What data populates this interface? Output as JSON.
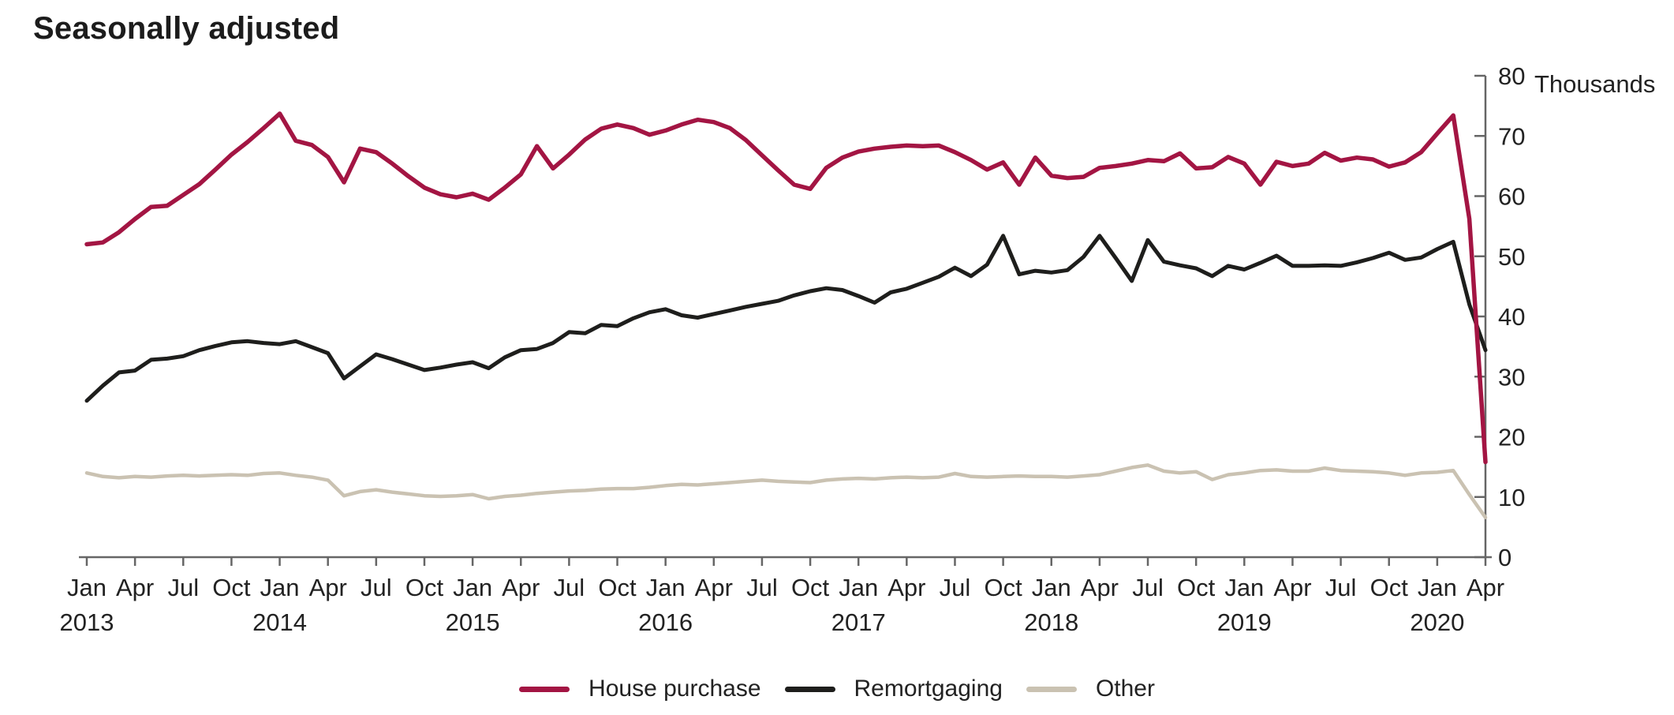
{
  "title": "Seasonally adjusted",
  "y_axis": {
    "unit_label": "Thousands",
    "min": 0,
    "max": 80,
    "step": 10,
    "tick_labels": [
      "0",
      "10",
      "20",
      "30",
      "40",
      "50",
      "60",
      "70",
      "80"
    ]
  },
  "x_axis": {
    "ticks": [
      {
        "month": "Jan",
        "year": "2013"
      },
      {
        "month": "Apr",
        "year": ""
      },
      {
        "month": "Jul",
        "year": ""
      },
      {
        "month": "Oct",
        "year": ""
      },
      {
        "month": "Jan",
        "year": "2014"
      },
      {
        "month": "Apr",
        "year": ""
      },
      {
        "month": "Jul",
        "year": ""
      },
      {
        "month": "Oct",
        "year": ""
      },
      {
        "month": "Jan",
        "year": "2015"
      },
      {
        "month": "Apr",
        "year": ""
      },
      {
        "month": "Jul",
        "year": ""
      },
      {
        "month": "Oct",
        "year": ""
      },
      {
        "month": "Jan",
        "year": "2016"
      },
      {
        "month": "Apr",
        "year": ""
      },
      {
        "month": "Jul",
        "year": ""
      },
      {
        "month": "Oct",
        "year": ""
      },
      {
        "month": "Jan",
        "year": "2017"
      },
      {
        "month": "Apr",
        "year": ""
      },
      {
        "month": "Jul",
        "year": ""
      },
      {
        "month": "Oct",
        "year": ""
      },
      {
        "month": "Jan",
        "year": "2018"
      },
      {
        "month": "Apr",
        "year": ""
      },
      {
        "month": "Jul",
        "year": ""
      },
      {
        "month": "Oct",
        "year": ""
      },
      {
        "month": "Jan",
        "year": "2019"
      },
      {
        "month": "Apr",
        "year": ""
      },
      {
        "month": "Jul",
        "year": ""
      },
      {
        "month": "Oct",
        "year": ""
      },
      {
        "month": "Jan",
        "year": "2020"
      },
      {
        "month": "Apr",
        "year": ""
      }
    ]
  },
  "legend": [
    {
      "label": "House purchase",
      "color": "#a31543"
    },
    {
      "label": "Remortgaging",
      "color": "#1e1e1c"
    },
    {
      "label": "Other",
      "color": "#cac2b2"
    }
  ],
  "colors": {
    "house_purchase": "#a31543",
    "remortgaging": "#1e1e1c",
    "other": "#cac2b2",
    "axis": "#666666",
    "text": "#222222"
  },
  "chart_data": {
    "type": "line",
    "title": "Seasonally adjusted",
    "x_start": "2013-01",
    "x_end": "2020-04",
    "x_frequency": "monthly",
    "xlabel": "",
    "ylabel": "Thousands",
    "ylim": [
      0,
      80
    ],
    "grid": false,
    "legend_position": "bottom-center",
    "y_axis_side": "right",
    "series": [
      {
        "name": "House purchase",
        "color": "#a31543",
        "values": [
          52.0,
          52.3,
          54.0,
          56.2,
          58.2,
          58.4,
          60.2,
          62.0,
          64.4,
          66.9,
          69.0,
          71.3,
          73.7,
          69.2,
          68.5,
          66.5,
          62.3,
          67.9,
          67.3,
          65.4,
          63.3,
          61.4,
          60.3,
          59.8,
          60.4,
          59.4,
          61.4,
          63.6,
          68.3,
          64.6,
          66.9,
          69.4,
          71.2,
          71.9,
          71.3,
          70.2,
          70.9,
          71.9,
          72.7,
          72.3,
          71.3,
          69.3,
          66.8,
          64.3,
          61.9,
          61.2,
          64.7,
          66.4,
          67.4,
          67.9,
          68.2,
          68.4,
          68.3,
          68.4,
          67.3,
          66.0,
          64.4,
          65.6,
          61.9,
          66.4,
          63.4,
          63.0,
          63.2,
          64.7,
          65.0,
          65.4,
          66.0,
          65.8,
          67.1,
          64.6,
          64.8,
          66.5,
          65.4,
          61.9,
          65.7,
          65.0,
          65.4,
          67.2,
          65.9,
          66.4,
          66.1,
          64.9,
          65.6,
          67.3,
          70.4,
          73.4,
          56.2,
          15.8
        ]
      },
      {
        "name": "Remortgaging",
        "color": "#1e1e1c",
        "values": [
          26.0,
          28.5,
          30.7,
          31.0,
          32.8,
          33.0,
          33.4,
          34.4,
          35.1,
          35.7,
          35.9,
          35.6,
          35.4,
          35.9,
          34.9,
          33.9,
          29.7,
          31.7,
          33.7,
          32.9,
          32.0,
          31.1,
          31.5,
          32.0,
          32.4,
          31.4,
          33.2,
          34.4,
          34.6,
          35.6,
          37.4,
          37.2,
          38.6,
          38.4,
          39.7,
          40.7,
          41.2,
          40.2,
          39.8,
          40.4,
          41.0,
          41.6,
          42.1,
          42.6,
          43.5,
          44.2,
          44.7,
          44.4,
          43.4,
          42.3,
          44.0,
          44.6,
          45.6,
          46.6,
          48.1,
          46.7,
          48.6,
          53.4,
          47.0,
          47.6,
          47.3,
          47.7,
          49.9,
          53.4,
          49.7,
          45.9,
          52.7,
          49.1,
          48.5,
          48.0,
          46.7,
          48.4,
          47.8,
          48.9,
          50.1,
          48.4,
          48.4,
          48.5,
          48.4,
          49.0,
          49.7,
          50.6,
          49.4,
          49.8,
          51.2,
          52.4,
          42.0,
          34.4
        ]
      },
      {
        "name": "Other",
        "color": "#cac2b2",
        "values": [
          14.0,
          13.4,
          13.2,
          13.4,
          13.3,
          13.5,
          13.6,
          13.5,
          13.6,
          13.7,
          13.6,
          13.9,
          14.0,
          13.6,
          13.3,
          12.8,
          10.2,
          10.9,
          11.2,
          10.8,
          10.5,
          10.2,
          10.1,
          10.2,
          10.4,
          9.7,
          10.1,
          10.3,
          10.6,
          10.8,
          11.0,
          11.1,
          11.3,
          11.4,
          11.4,
          11.6,
          11.9,
          12.1,
          12.0,
          12.2,
          12.4,
          12.6,
          12.8,
          12.6,
          12.5,
          12.4,
          12.8,
          13.0,
          13.1,
          13.0,
          13.2,
          13.3,
          13.2,
          13.3,
          13.9,
          13.4,
          13.3,
          13.4,
          13.5,
          13.4,
          13.4,
          13.3,
          13.5,
          13.7,
          14.3,
          14.9,
          15.3,
          14.3,
          14.0,
          14.2,
          12.9,
          13.7,
          14.0,
          14.4,
          14.5,
          14.3,
          14.3,
          14.8,
          14.4,
          14.3,
          14.2,
          14.0,
          13.6,
          14.0,
          14.1,
          14.4,
          10.4,
          6.6
        ]
      }
    ]
  }
}
